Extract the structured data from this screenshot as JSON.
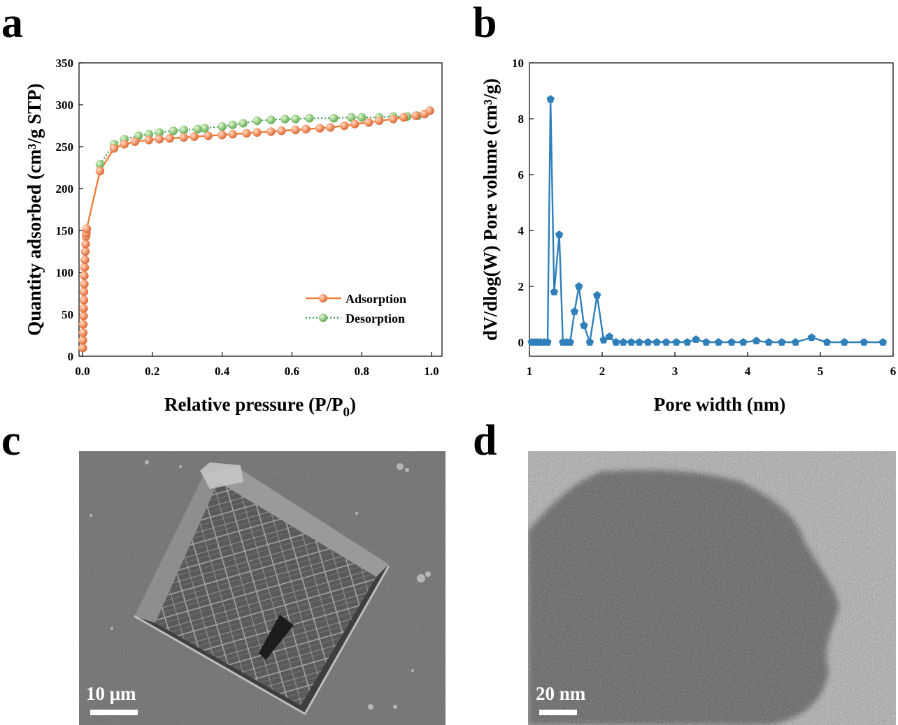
{
  "panels": {
    "a": {
      "letter": "a"
    },
    "b": {
      "letter": "b"
    },
    "c": {
      "letter": "c",
      "scale_bar_label": "10 μm"
    },
    "d": {
      "letter": "d",
      "scale_bar_label": "20 nm"
    }
  },
  "chart_data": [
    {
      "panel": "a",
      "type": "line",
      "xlabel": "Relative pressure (P/P₀)",
      "xlabel_main": "Relative pressure (P/P",
      "xlabel_sub": "0",
      "xlabel_close": ")",
      "ylabel": "Quantity adsorbed (cm³/g STP)",
      "xlim": [
        -0.01,
        1.03
      ],
      "ylim": [
        0,
        350
      ],
      "xticks": [
        0.0,
        0.2,
        0.4,
        0.6,
        0.8,
        1.0
      ],
      "xtick_labels": [
        "0.0",
        "0.2",
        "0.4",
        "0.6",
        "0.8",
        "1.0"
      ],
      "yticks": [
        0,
        50,
        100,
        150,
        200,
        250,
        300,
        350
      ],
      "ytick_labels": [
        "0",
        "50",
        "100",
        "150",
        "200",
        "250",
        "300",
        "350"
      ],
      "legend_position": "bottom-right",
      "series": [
        {
          "name": "Adsorption",
          "color": "#f08a5a",
          "line_color": "#f07c38",
          "line_style": "solid",
          "x": [
            0.001,
            0.001,
            0.002,
            0.002,
            0.003,
            0.003,
            0.004,
            0.004,
            0.005,
            0.005,
            0.006,
            0.007,
            0.008,
            0.009,
            0.01,
            0.011,
            0.012,
            0.05,
            0.09,
            0.12,
            0.15,
            0.19,
            0.22,
            0.25,
            0.29,
            0.32,
            0.36,
            0.4,
            0.43,
            0.47,
            0.5,
            0.54,
            0.57,
            0.61,
            0.64,
            0.68,
            0.71,
            0.75,
            0.78,
            0.82,
            0.85,
            0.89,
            0.92,
            0.955,
            0.98,
            0.995
          ],
          "y": [
            10,
            19,
            28,
            38,
            48,
            57,
            67,
            77,
            86,
            96,
            106,
            115,
            125,
            134,
            143,
            147,
            152,
            221,
            248,
            253,
            256,
            258,
            259,
            260,
            261,
            262,
            263,
            264,
            265,
            266,
            267,
            268,
            269,
            270,
            271,
            272,
            273,
            275,
            277,
            279,
            281,
            283,
            285,
            287,
            289,
            293
          ]
        },
        {
          "name": "Desorption",
          "color": "#8cc47a",
          "line_color": "#2e9e4e",
          "line_style": "dotted",
          "x": [
            0.995,
            0.96,
            0.93,
            0.89,
            0.85,
            0.8,
            0.77,
            0.72,
            0.65,
            0.61,
            0.58,
            0.54,
            0.5,
            0.46,
            0.43,
            0.4,
            0.35,
            0.33,
            0.29,
            0.26,
            0.22,
            0.19,
            0.16,
            0.12,
            0.09,
            0.05
          ],
          "y": [
            293,
            287,
            286,
            286,
            285,
            285,
            285,
            284,
            284,
            283,
            283,
            282,
            281,
            278,
            276,
            274,
            272,
            271,
            270,
            269,
            267,
            265,
            263,
            259,
            253,
            229
          ]
        }
      ]
    },
    {
      "panel": "b",
      "type": "line",
      "xlabel": "Pore width (nm)",
      "ylabel": "dV/dlog(W) Pore volume (cm³/g)",
      "xlim": [
        1,
        6
      ],
      "ylim": [
        -0.5,
        10
      ],
      "xticks": [
        1,
        2,
        3,
        4,
        5,
        6
      ],
      "xtick_labels": [
        "1",
        "2",
        "3",
        "4",
        "5",
        "6"
      ],
      "yticks": [
        0,
        2,
        4,
        6,
        8,
        10
      ],
      "ytick_labels": [
        "0",
        "2",
        "4",
        "6",
        "8",
        "10"
      ],
      "series": [
        {
          "name": "",
          "color": "#2f7fba",
          "marker": "pentagon",
          "x": [
            1.03,
            1.07,
            1.11,
            1.15,
            1.2,
            1.25,
            1.29,
            1.34,
            1.41,
            1.46,
            1.51,
            1.56,
            1.62,
            1.68,
            1.75,
            1.83,
            1.93,
            2.02,
            2.1,
            2.19,
            2.29,
            2.4,
            2.51,
            2.63,
            2.75,
            2.88,
            3.02,
            3.17,
            3.29,
            3.43,
            3.6,
            3.78,
            3.94,
            4.12,
            4.29,
            4.47,
            4.66,
            4.88,
            5.09,
            5.33,
            5.6,
            5.86
          ],
          "y": [
            0,
            0,
            0,
            0,
            0,
            0,
            8.7,
            1.8,
            3.85,
            0,
            0,
            0,
            1.1,
            2.0,
            0.6,
            0,
            1.68,
            0.08,
            0.2,
            0,
            0,
            0,
            0,
            0,
            0,
            0,
            0,
            0,
            0.1,
            0,
            0,
            0,
            0,
            0.05,
            0,
            0,
            0,
            0.17,
            0,
            0,
            0,
            0
          ]
        }
      ]
    }
  ]
}
